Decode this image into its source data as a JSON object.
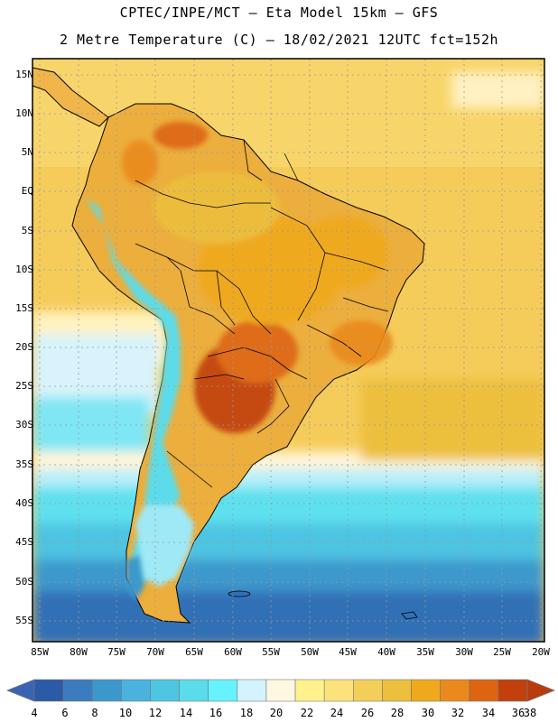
{
  "header": {
    "line1": "CPTEC/INPE/MCT –  Eta Model 15km – GFS",
    "line2": "2 Metre Temperature (C) – 18/02/2021 12UTC fct=152h"
  },
  "lat_labels": [
    "15N",
    "10N",
    "5N",
    "EQ",
    "5S",
    "10S",
    "15S",
    "20S",
    "25S",
    "30S",
    "35S",
    "40S",
    "45S",
    "50S",
    "55S"
  ],
  "lon_labels": [
    "85W",
    "80W",
    "75W",
    "70W",
    "65W",
    "60W",
    "55W",
    "50W",
    "45W",
    "40W",
    "35W",
    "30W",
    "25W",
    "20W"
  ],
  "colorbar": {
    "labels": [
      "4",
      "6",
      "8",
      "10",
      "12",
      "14",
      "16",
      "18",
      "20",
      "22",
      "24",
      "26",
      "28",
      "30",
      "32",
      "34",
      "36",
      "38"
    ],
    "colors": [
      "#2b5aa6",
      "#3a7cbf",
      "#3c98cc",
      "#4ab2dc",
      "#4ec6e2",
      "#5bdceb",
      "#66f2ff",
      "#d3f3ff",
      "#fff8e0",
      "#fff28c",
      "#fbe27a",
      "#f3cf5a",
      "#ecbf3e",
      "#f0a91c",
      "#ea8a1c",
      "#dd6512",
      "#c1400c"
    ],
    "low_color": "#3a64b2",
    "high_color": "#b83c0c"
  }
}
